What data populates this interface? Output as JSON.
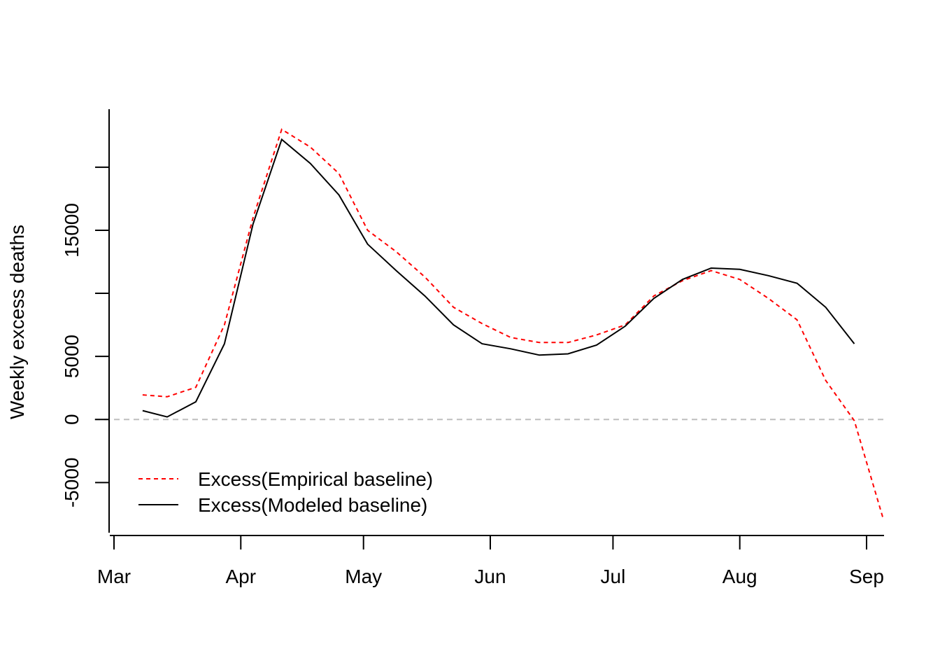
{
  "chart_data": {
    "type": "line",
    "title": "",
    "xlabel": "",
    "ylabel": "Weekly excess deaths",
    "x_ticks": [
      "Mar",
      "Apr",
      "May",
      "Jun",
      "Jul",
      "Aug",
      "Sep"
    ],
    "x_tick_days": [
      0,
      31,
      61,
      92,
      122,
      153,
      184
    ],
    "x_range_days": [
      0,
      189
    ],
    "y_ticks": [
      -5000,
      0,
      5000,
      15000
    ],
    "y_tick_labels": [
      "-5000",
      "0",
      "5000",
      "15000"
    ],
    "ylim": [
      -9200,
      24600
    ],
    "zero_line": {
      "value": 0,
      "color": "#bebebe",
      "dash": "dashed"
    },
    "legend": {
      "position": "bottom-left"
    },
    "grid": false,
    "series": [
      {
        "name": "Excess(Empirical baseline)",
        "color": "#ff0000",
        "dash": "dashed",
        "x": [
          7,
          13,
          20,
          27,
          34,
          41,
          48,
          55,
          62,
          69,
          76,
          83,
          90,
          97,
          104,
          111,
          118,
          125,
          132,
          139,
          146,
          153,
          160,
          167,
          174,
          181,
          188
        ],
        "y": [
          1950,
          1800,
          2550,
          7500,
          16000,
          23000,
          21600,
          19500,
          15000,
          13300,
          11300,
          8900,
          7600,
          6500,
          6100,
          6100,
          6700,
          7500,
          9800,
          11000,
          11800,
          11100,
          9600,
          7900,
          3100,
          -100,
          -7800
        ]
      },
      {
        "name": "Excess(Modeled baseline)",
        "color": "#000000",
        "dash": "solid",
        "x": [
          7,
          13,
          20,
          27,
          34,
          41,
          48,
          55,
          62,
          69,
          76,
          83,
          90,
          97,
          104,
          111,
          118,
          125,
          132,
          139,
          146,
          153,
          160,
          167,
          174,
          181,
          188
        ],
        "y": [
          700,
          200,
          1400,
          6000,
          15500,
          22200,
          20300,
          17800,
          13900,
          11800,
          9800,
          7500,
          6000,
          5600,
          5100,
          5200,
          5900,
          7400,
          9600,
          11100,
          12000,
          11900,
          11400,
          10800,
          8900,
          6000,
          null
        ]
      }
    ]
  }
}
